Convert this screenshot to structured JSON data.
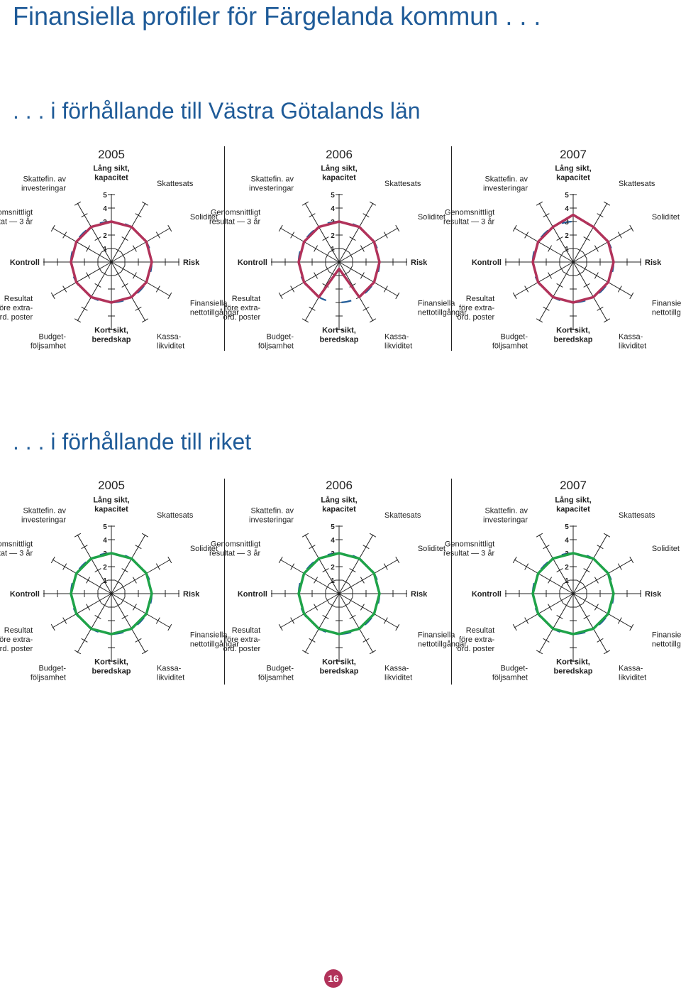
{
  "page": {
    "title": "Finansiella profiler för Färgelanda kommun . . .",
    "section1_title": ". . . i förhållande till Västra Götalands län",
    "section2_title": ". . . i förhållande till riket",
    "page_number": "16"
  },
  "colors": {
    "title": "#1f5b98",
    "region_series": "#b1325a",
    "country_series": "#1fa349",
    "reference_dash": "#1f5b98",
    "axis": "#222222"
  },
  "axes": [
    {
      "label": "Lång sikt,\nkapacitet",
      "bold": true
    },
    {
      "label": "Skattesats",
      "bold": false
    },
    {
      "label": "Soliditet",
      "bold": false
    },
    {
      "label": "Risk",
      "bold": true
    },
    {
      "label": "Finansiella\nnettotillgångar",
      "bold": false
    },
    {
      "label": "Kassa-\nlikviditet",
      "bold": false
    },
    {
      "label": "Kort sikt,\nberedskap",
      "bold": true
    },
    {
      "label": "Budget-\nföljsamhet",
      "bold": false
    },
    {
      "label": "Resultat\nföre extra-\nord. poster",
      "bold": false
    },
    {
      "label": "Kontroll",
      "bold": true
    },
    {
      "label": "Genomsnittligt\nresultat — 3 år",
      "bold": false
    },
    {
      "label": "Skattefin. av\ninvesteringar",
      "bold": false
    }
  ],
  "scale_ticks": [
    "1",
    "2",
    "3",
    "4",
    "5"
  ],
  "chart_data": [
    {
      "type": "radar",
      "comparison": "Västra Götalands län",
      "year": "2005",
      "rmax": 5,
      "values": [
        3,
        3,
        3,
        3,
        3,
        3,
        3,
        3,
        3,
        3,
        3,
        3
      ]
    },
    {
      "type": "radar",
      "comparison": "Västra Götalands län",
      "year": "2006",
      "rmax": 5,
      "values": [
        3,
        3,
        3,
        3,
        3,
        3,
        0.5,
        3,
        3,
        3,
        3,
        3
      ]
    },
    {
      "type": "radar",
      "comparison": "Västra Götalands län",
      "year": "2007",
      "rmax": 5,
      "values": [
        3.5,
        3,
        3,
        3,
        3,
        3,
        3,
        3,
        3,
        3,
        3,
        3
      ]
    },
    {
      "type": "radar",
      "comparison": "riket",
      "year": "2005",
      "rmax": 5,
      "values": [
        3,
        3,
        3,
        3,
        3,
        3,
        3,
        3,
        3,
        3,
        3,
        3
      ]
    },
    {
      "type": "radar",
      "comparison": "riket",
      "year": "2006",
      "rmax": 5,
      "values": [
        3,
        3,
        3,
        3,
        3,
        3,
        3,
        3,
        3,
        3,
        3,
        3
      ]
    },
    {
      "type": "radar",
      "comparison": "riket",
      "year": "2007",
      "rmax": 5,
      "values": [
        3,
        3,
        3,
        3,
        3,
        3,
        3,
        3,
        3,
        3,
        3,
        3
      ]
    }
  ]
}
